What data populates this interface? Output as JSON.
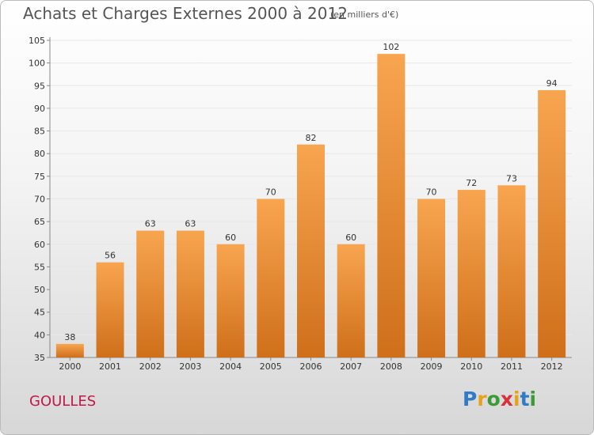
{
  "header": {
    "title": "Achats et Charges Externes 2000 à 2012",
    "subtitle": "(en milliers d'€)"
  },
  "footer": {
    "town": "GOULLES",
    "logo_text": "Proxiti"
  },
  "colors": {
    "bar_top": "#f8a550",
    "bar_bottom": "#cf6f1a",
    "town_text": "#c0184a",
    "grid": "#e8e8e8",
    "axis": "#888888"
  },
  "chart_data": {
    "type": "bar",
    "title": "Achats et Charges Externes 2000 à 2012",
    "subtitle": "(en milliers d'€)",
    "xlabel": "",
    "ylabel": "",
    "categories": [
      "2000",
      "2001",
      "2002",
      "2003",
      "2004",
      "2005",
      "2006",
      "2007",
      "2008",
      "2009",
      "2010",
      "2011",
      "2012"
    ],
    "values": [
      38,
      56,
      63,
      63,
      60,
      70,
      82,
      60,
      102,
      70,
      72,
      73,
      94
    ],
    "value_labels": [
      "38",
      "56",
      "63",
      "63",
      "60",
      "70",
      "82",
      "60",
      "102",
      "70",
      "72",
      "73",
      "94"
    ],
    "ylim": [
      35,
      105
    ],
    "yticks": [
      35,
      40,
      45,
      50,
      55,
      60,
      65,
      70,
      75,
      80,
      85,
      90,
      95,
      100,
      105
    ],
    "grid": true,
    "legend": "none"
  }
}
